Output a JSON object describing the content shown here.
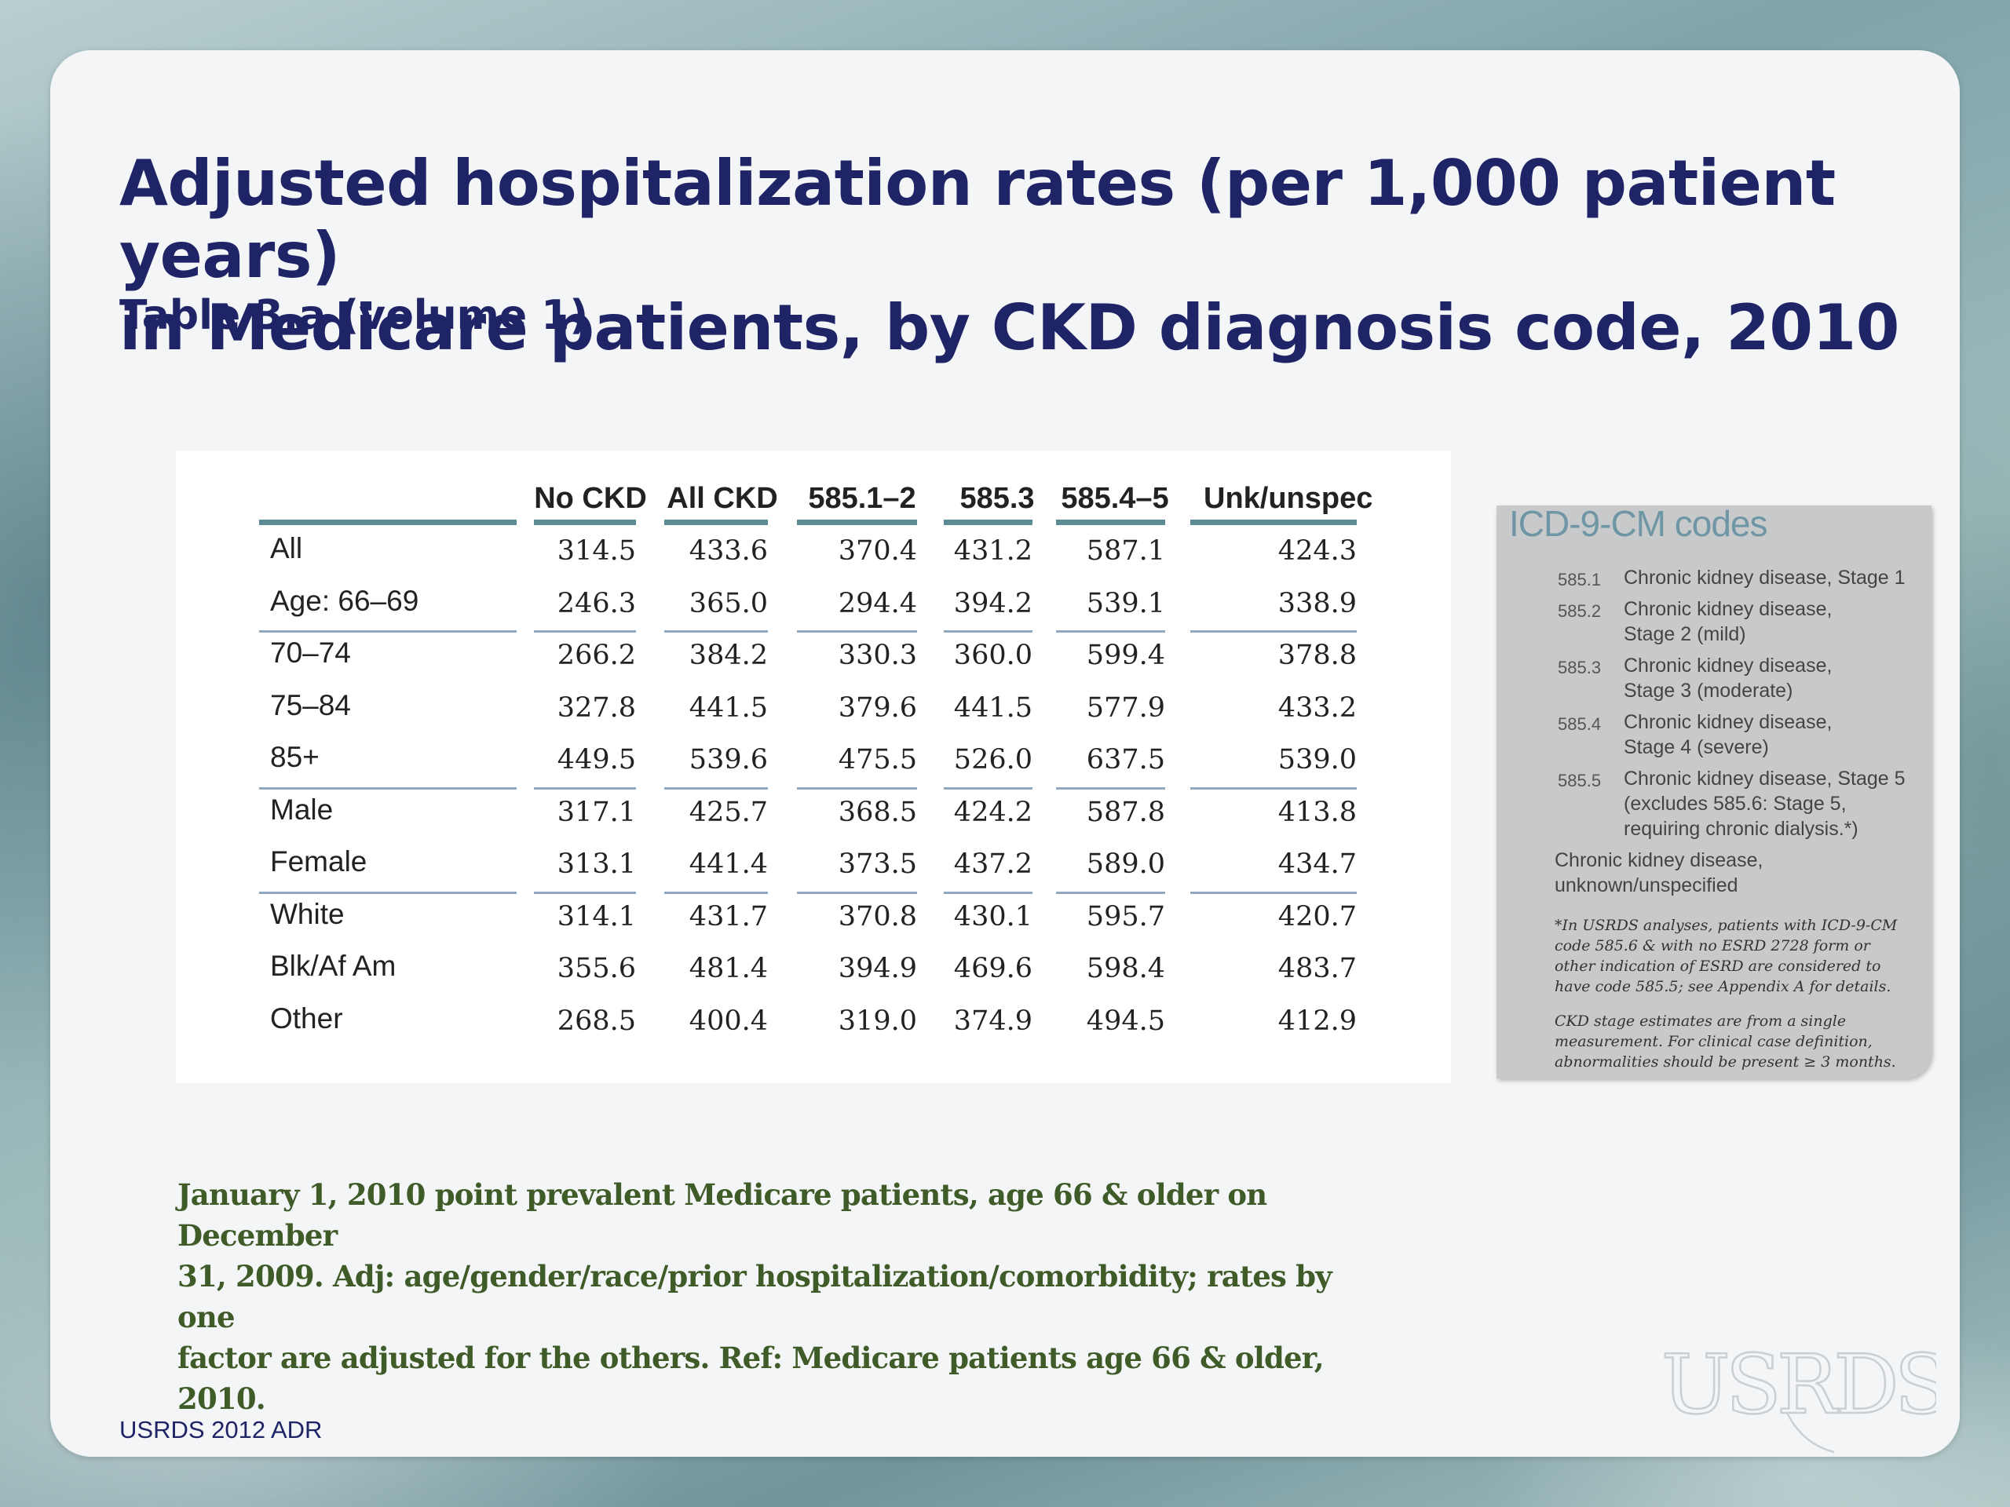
{
  "slide": {
    "title_line1": "Adjusted hospitalization rates (per 1,000 patient years)",
    "title_line2": "in Medicare patients, by  CKD diagnosis code, 2010",
    "subtitle": "Table 3.a (volume 1)",
    "footnote_line1": "January 1, 2010 point prevalent Medicare patients, age 66 & older on December",
    "footnote_line2": "31, 2009. Adj: age/gender/race/prior hospitalization/comorbidity; rates by one",
    "footnote_line3": "factor are adjusted for the others. Ref: Medicare patients age 66 & older, 2010.",
    "source": "USRDS 2012 ADR",
    "logo_text": "USRDS"
  },
  "table": {
    "columns": [
      "No CKD",
      "All CKD",
      "585.1–2",
      "585.3",
      "585.4–5",
      "Unk/unspec"
    ],
    "rows": [
      {
        "label": "All",
        "values": [
          "314.5",
          "433.6",
          "370.4",
          "431.2",
          "587.1",
          "424.3"
        ]
      },
      {
        "label": "Age: 66–69",
        "values": [
          "246.3",
          "365.0",
          "294.4",
          "394.2",
          "539.1",
          "338.9"
        ]
      },
      {
        "label": "70–74",
        "values": [
          "266.2",
          "384.2",
          "330.3",
          "360.0",
          "599.4",
          "378.8"
        ]
      },
      {
        "label": "75–84",
        "values": [
          "327.8",
          "441.5",
          "379.6",
          "441.5",
          "577.9",
          "433.2"
        ]
      },
      {
        "label": "85+",
        "values": [
          "449.5",
          "539.6",
          "475.5",
          "526.0",
          "637.5",
          "539.0"
        ]
      },
      {
        "label": "Male",
        "values": [
          "317.1",
          "425.7",
          "368.5",
          "424.2",
          "587.8",
          "413.8"
        ]
      },
      {
        "label": "Female",
        "values": [
          "313.1",
          "441.4",
          "373.5",
          "437.2",
          "589.0",
          "434.7"
        ]
      },
      {
        "label": "White",
        "values": [
          "314.1",
          "431.7",
          "370.8",
          "430.1",
          "595.7",
          "420.7"
        ]
      },
      {
        "label": "Blk/Af Am",
        "values": [
          "355.6",
          "481.4",
          "394.9",
          "469.6",
          "598.4",
          "483.7"
        ]
      },
      {
        "label": "Other",
        "values": [
          "268.5",
          "400.4",
          "319.0",
          "374.9",
          "494.5",
          "412.9"
        ]
      }
    ]
  },
  "icd": {
    "title": "ICD-9-CM codes",
    "codes": [
      {
        "code": "585.1",
        "desc": "Chronic kidney disease, Stage 1"
      },
      {
        "code": "585.2",
        "desc": "Chronic kidney disease, Stage 2 (mild)"
      },
      {
        "code": "585.3",
        "desc": "Chronic kidney disease, Stage 3 (moderate)"
      },
      {
        "code": "585.4",
        "desc": "Chronic kidney disease, Stage 4 (severe)"
      },
      {
        "code": "585.5",
        "desc": "Chronic kidney disease, Stage 5 (excludes 585.6: Stage 5, requiring chronic dialysis.*)"
      }
    ],
    "unknown": "Chronic kidney disease, unknown/unspecified",
    "note1": "*In USRDS analyses, patients with ICD-9-CM code 585.6 & with no ESRD 2728 form or other indication of ESRD are considered to have code 585.5; see Appendix A for details.",
    "note2": "CKD stage estimates are from a single measurement. For clinical case definition, abnormalities should be present ≥ 3 months."
  }
}
